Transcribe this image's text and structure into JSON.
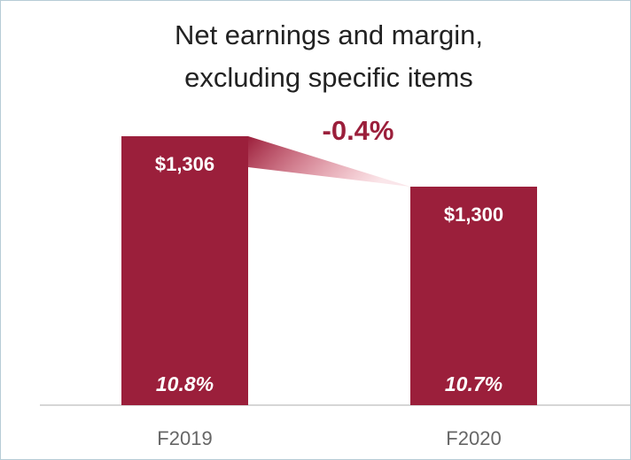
{
  "chart_data": {
    "type": "bar",
    "title": "Net earnings and margin, excluding specific items",
    "categories": [
      "F2019",
      "F2020"
    ],
    "values": [
      1306,
      1300
    ],
    "value_labels": [
      "$1,306",
      "$1,300"
    ],
    "margins": [
      10.8,
      10.7
    ],
    "margin_labels": [
      "10.8%",
      "10.7%"
    ],
    "annotation": "-0.4%",
    "color": "#9b1f3b",
    "ylim": [
      1274,
      1310
    ]
  }
}
